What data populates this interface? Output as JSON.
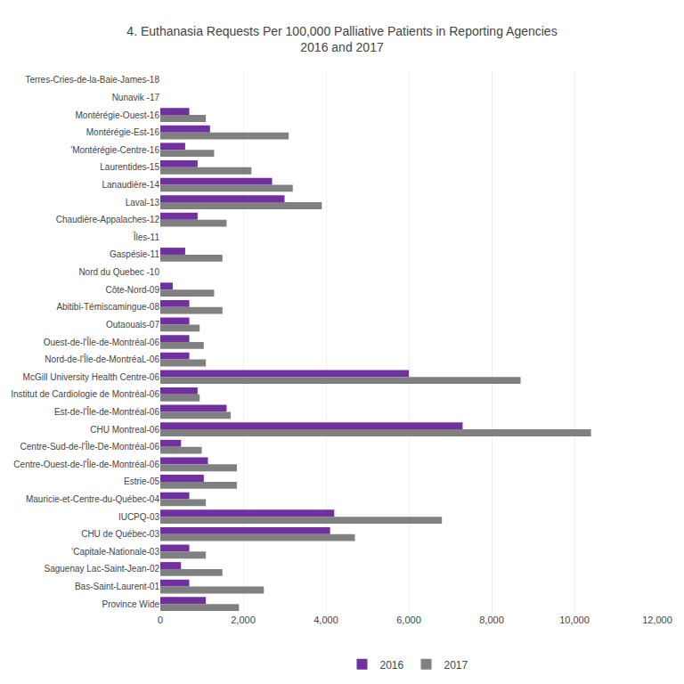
{
  "chart_data": {
    "type": "bar",
    "orientation": "horizontal",
    "title": "4. Euthanasia Requests Per 100,000 Palliative Patients in Reporting Agencies\n2016 and 2017",
    "categories": [
      "Terres-Cries-de-la-Baie-James-18",
      "Nunavik -17",
      "Montérégie-Ouest-16",
      "Montérégie-Est-16",
      "'Montérégie-Centre-16",
      "Laurentides-15",
      "Lanaudière-14",
      "Laval-13",
      "Chaudière-Appalaches-12",
      "Îles-11",
      "Gaspésie-11",
      "Nord du Quebec -10",
      "Côte-Nord-09",
      "Abitibi-Témiscamingue-08",
      "Outaouais-07",
      "Ouest-de-l'Île-de-Montréal-06",
      "Nord-de-l'Île-de-MontréaL-06",
      "McGill University Health Centre-06",
      "Institut de Cardiologie de Montréal-06",
      "Est-de-l'Île-de-Montréal-06",
      "CHU Montreal-06",
      "Centre-Sud-de-l'Île-De-Montréal-06",
      "Centre-Ouest-de-l'Île-de-Montréal-06",
      "Estrie-05",
      "Mauricie-et-Centre-du-Québec-04",
      "IUCPQ-03",
      "CHU de Québec-03",
      "'Capitale-Nationale-03",
      "Saguenay Lac-Saint-Jean-02",
      "Bas-Saint-Laurent-01",
      "Province Wide"
    ],
    "series": [
      {
        "name": "2016",
        "color": "#7030a0",
        "values": [
          0,
          0,
          700,
          1200,
          600,
          900,
          2700,
          3000,
          900,
          0,
          600,
          0,
          300,
          700,
          700,
          700,
          700,
          6000,
          900,
          1600,
          7300,
          500,
          1150,
          1050,
          700,
          4200,
          4100,
          700,
          500,
          700,
          1100
        ]
      },
      {
        "name": "2017",
        "color": "#808080",
        "values": [
          0,
          0,
          1100,
          3100,
          1300,
          2200,
          3200,
          3900,
          1600,
          0,
          1500,
          0,
          1300,
          1500,
          950,
          1050,
          1100,
          8700,
          950,
          1700,
          10400,
          1000,
          1850,
          1850,
          1100,
          6800,
          4700,
          1100,
          1500,
          2500,
          1900
        ]
      }
    ],
    "xlim": [
      0,
      12000
    ],
    "xticks": [
      0,
      {
        "value": 2000,
        "label": "2,000"
      },
      {
        "value": 4000,
        "label": "4,000"
      },
      {
        "value": 6000,
        "label": "6,000"
      },
      {
        "value": 8000,
        "label": "8,000"
      },
      {
        "value": 10000,
        "label": "10,000"
      },
      {
        "value": 12000,
        "label": "12,000"
      }
    ],
    "grid": true,
    "legend": "bottom"
  }
}
